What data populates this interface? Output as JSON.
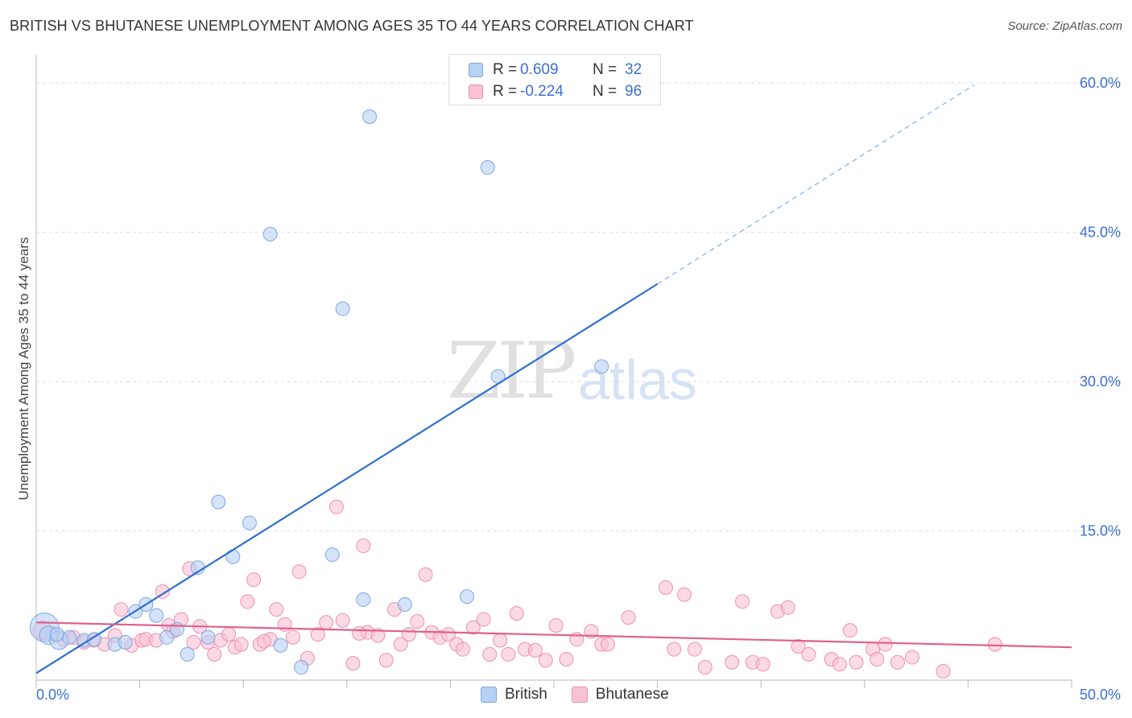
{
  "header": {
    "title": "BRITISH VS BHUTANESE UNEMPLOYMENT AMONG AGES 35 TO 44 YEARS CORRELATION CHART",
    "source": "Source: ZipAtlas.com"
  },
  "watermark": {
    "zip": "ZIP",
    "atlas": "atlas"
  },
  "legend": {
    "british": {
      "r_label": "R =",
      "r_value": "0.609",
      "n_label": "N =",
      "n_value": "32"
    },
    "bhutanese": {
      "r_label": "R =",
      "r_value": "-0.224",
      "n_label": "N =",
      "n_value": "96"
    }
  },
  "colors": {
    "british_fill": "#b7d1f3",
    "british_stroke": "#7ea7e0",
    "british_line": "#2f6fd0",
    "bhutanese_fill": "#f8c2d3",
    "bhutanese_stroke": "#ee90b0",
    "bhutanese_line": "#e0608f",
    "grid": "#dedede",
    "tick_label": "#3b6fd0"
  },
  "chart_data": {
    "type": "scatter",
    "title": "BRITISH VS BHUTANESE UNEMPLOYMENT AMONG AGES 35 TO 44 YEARS CORRELATION CHART",
    "xlabel": "",
    "ylabel": "Unemployment Among Ages 35 to 44 years",
    "xlim": [
      0,
      50
    ],
    "ylim": [
      0,
      62.5
    ],
    "x_tick_labels": [
      "0.0%",
      "50.0%"
    ],
    "y_ticks": [
      15,
      30,
      45,
      60
    ],
    "y_tick_labels": [
      "15.0%",
      "30.0%",
      "45.0%",
      "60.0%"
    ],
    "grid": true,
    "legend_position": "top-center",
    "series": [
      {
        "name": "British",
        "r": 0.609,
        "n": 32,
        "trendline": {
          "x0": 0,
          "y0": 0.7,
          "x1": 30,
          "y1": 39.8,
          "dashed_to_x": 45.3,
          "dashed_to_y": 59.8
        },
        "points": [
          [
            0.4,
            5.3,
            1.2
          ],
          [
            0.6,
            4.5,
            0.7
          ],
          [
            1.1,
            4.0,
            0.6
          ],
          [
            1.6,
            4.3,
            0.4
          ],
          [
            2.3,
            4.0,
            0.4
          ],
          [
            2.8,
            4.1,
            0.4
          ],
          [
            3.8,
            3.6,
            0.4
          ],
          [
            4.3,
            3.8,
            0.4
          ],
          [
            4.8,
            6.9,
            0.4
          ],
          [
            5.3,
            7.6,
            0.4
          ],
          [
            5.8,
            6.5,
            0.4
          ],
          [
            6.3,
            4.3,
            0.4
          ],
          [
            6.8,
            5.1,
            0.4
          ],
          [
            7.3,
            2.6,
            0.4
          ],
          [
            7.8,
            11.3,
            0.4
          ],
          [
            8.3,
            4.3,
            0.4
          ],
          [
            8.8,
            17.9,
            0.4
          ],
          [
            9.5,
            12.4,
            0.4
          ],
          [
            10.3,
            15.8,
            0.4
          ],
          [
            11.3,
            44.8,
            0.4
          ],
          [
            11.8,
            3.5,
            0.4
          ],
          [
            12.8,
            1.3,
            0.4
          ],
          [
            14.8,
            37.3,
            0.4
          ],
          [
            14.3,
            12.6,
            0.4
          ],
          [
            15.8,
            8.1,
            0.4
          ],
          [
            16.1,
            56.6,
            0.4
          ],
          [
            17.8,
            7.6,
            0.4
          ],
          [
            20.8,
            8.4,
            0.4
          ],
          [
            21.8,
            51.5,
            0.4
          ],
          [
            22.3,
            30.5,
            0.4
          ],
          [
            27.3,
            31.5,
            0.4
          ],
          [
            1.0,
            4.6,
            0.4
          ]
        ]
      },
      {
        "name": "Bhutanese",
        "r": -0.224,
        "n": 96,
        "trendline": {
          "x0": 0,
          "y0": 5.8,
          "x1": 50,
          "y1": 3.3
        },
        "points": [
          [
            0.3,
            5.0,
            0.9
          ],
          [
            0.8,
            4.6,
            0.5
          ],
          [
            1.3,
            4.1,
            0.4
          ],
          [
            1.8,
            4.3,
            0.4
          ],
          [
            2.3,
            3.8,
            0.4
          ],
          [
            2.8,
            4.0,
            0.4
          ],
          [
            3.3,
            3.6,
            0.4
          ],
          [
            3.8,
            4.5,
            0.4
          ],
          [
            4.1,
            7.1,
            0.4
          ],
          [
            4.6,
            3.5,
            0.4
          ],
          [
            5.1,
            4.0,
            0.4
          ],
          [
            5.3,
            4.1,
            0.4
          ],
          [
            5.8,
            4.0,
            0.4
          ],
          [
            6.1,
            8.9,
            0.4
          ],
          [
            6.4,
            5.5,
            0.4
          ],
          [
            6.6,
            4.9,
            0.4
          ],
          [
            7.0,
            6.1,
            0.4
          ],
          [
            7.4,
            11.2,
            0.4
          ],
          [
            7.6,
            3.8,
            0.4
          ],
          [
            7.9,
            5.4,
            0.4
          ],
          [
            8.3,
            3.8,
            0.4
          ],
          [
            8.6,
            2.6,
            0.4
          ],
          [
            8.9,
            4.0,
            0.4
          ],
          [
            9.3,
            4.6,
            0.4
          ],
          [
            9.6,
            3.3,
            0.4
          ],
          [
            9.9,
            3.6,
            0.4
          ],
          [
            10.2,
            7.9,
            0.4
          ],
          [
            10.5,
            10.1,
            0.4
          ],
          [
            10.8,
            3.6,
            0.4
          ],
          [
            11.3,
            4.1,
            0.4
          ],
          [
            11.6,
            7.1,
            0.4
          ],
          [
            12.0,
            5.6,
            0.4
          ],
          [
            12.4,
            4.3,
            0.4
          ],
          [
            12.7,
            10.9,
            0.4
          ],
          [
            13.1,
            2.2,
            0.4
          ],
          [
            13.6,
            4.6,
            0.4
          ],
          [
            14.0,
            5.8,
            0.4
          ],
          [
            14.5,
            17.4,
            0.4
          ],
          [
            14.8,
            6.0,
            0.4
          ],
          [
            15.3,
            1.7,
            0.4
          ],
          [
            15.8,
            13.5,
            0.4
          ],
          [
            16.0,
            4.8,
            0.4
          ],
          [
            16.5,
            4.5,
            0.4
          ],
          [
            16.9,
            2.0,
            0.4
          ],
          [
            17.3,
            7.1,
            0.4
          ],
          [
            17.6,
            3.6,
            0.4
          ],
          [
            18.0,
            4.6,
            0.4
          ],
          [
            18.4,
            5.9,
            0.4
          ],
          [
            18.8,
            10.6,
            0.4
          ],
          [
            19.1,
            4.8,
            0.4
          ],
          [
            19.5,
            4.3,
            0.4
          ],
          [
            19.9,
            4.6,
            0.4
          ],
          [
            20.3,
            3.6,
            0.4
          ],
          [
            20.6,
            3.1,
            0.4
          ],
          [
            21.1,
            5.3,
            0.4
          ],
          [
            21.6,
            6.1,
            0.4
          ],
          [
            21.9,
            2.6,
            0.4
          ],
          [
            22.4,
            4.0,
            0.4
          ],
          [
            22.8,
            2.6,
            0.4
          ],
          [
            23.2,
            6.7,
            0.4
          ],
          [
            23.6,
            3.1,
            0.4
          ],
          [
            24.1,
            3.0,
            0.4
          ],
          [
            24.6,
            2.0,
            0.4
          ],
          [
            25.1,
            5.5,
            0.4
          ],
          [
            25.6,
            2.1,
            0.4
          ],
          [
            26.1,
            4.1,
            0.4
          ],
          [
            26.8,
            4.9,
            0.4
          ],
          [
            27.3,
            3.6,
            0.4
          ],
          [
            27.6,
            3.6,
            0.4
          ],
          [
            28.6,
            6.3,
            0.4
          ],
          [
            30.4,
            9.3,
            0.4
          ],
          [
            30.8,
            3.1,
            0.4
          ],
          [
            31.3,
            8.6,
            0.4
          ],
          [
            31.8,
            3.1,
            0.4
          ],
          [
            32.3,
            1.3,
            0.4
          ],
          [
            33.6,
            1.8,
            0.4
          ],
          [
            34.1,
            7.9,
            0.4
          ],
          [
            34.6,
            1.8,
            0.4
          ],
          [
            35.1,
            1.6,
            0.4
          ],
          [
            35.8,
            6.9,
            0.4
          ],
          [
            36.3,
            7.3,
            0.4
          ],
          [
            36.8,
            3.4,
            0.4
          ],
          [
            37.3,
            2.6,
            0.4
          ],
          [
            38.4,
            2.1,
            0.4
          ],
          [
            38.8,
            1.6,
            0.4
          ],
          [
            39.3,
            5.0,
            0.4
          ],
          [
            39.6,
            1.8,
            0.4
          ],
          [
            40.4,
            3.1,
            0.4
          ],
          [
            40.6,
            2.1,
            0.4
          ],
          [
            41.0,
            3.6,
            0.4
          ],
          [
            41.6,
            1.8,
            0.4
          ],
          [
            42.3,
            2.3,
            0.4
          ],
          [
            43.8,
            0.9,
            0.4
          ],
          [
            46.3,
            3.6,
            0.4
          ],
          [
            11.0,
            3.9,
            0.4
          ],
          [
            15.6,
            4.7,
            0.4
          ]
        ]
      }
    ]
  },
  "bottom_legend": {
    "british": "British",
    "bhutanese": "Bhutanese"
  }
}
